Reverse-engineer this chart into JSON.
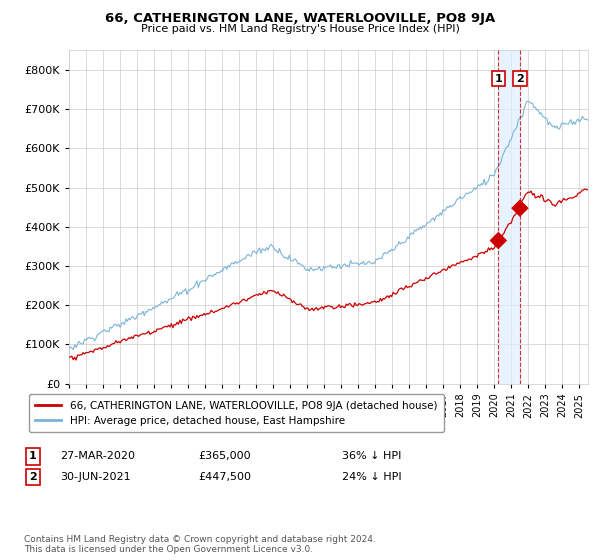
{
  "title": "66, CATHERINGTON LANE, WATERLOOVILLE, PO8 9JA",
  "subtitle": "Price paid vs. HM Land Registry's House Price Index (HPI)",
  "legend_line1": "66, CATHERINGTON LANE, WATERLOOVILLE, PO8 9JA (detached house)",
  "legend_line2": "HPI: Average price, detached house, East Hampshire",
  "annotation1_date": "27-MAR-2020",
  "annotation1_price": "£365,000",
  "annotation1_hpi": "36% ↓ HPI",
  "annotation2_date": "30-JUN-2021",
  "annotation2_price": "£447,500",
  "annotation2_hpi": "24% ↓ HPI",
  "footer": "Contains HM Land Registry data © Crown copyright and database right 2024.\nThis data is licensed under the Open Government Licence v3.0.",
  "sale1_x": 2020.23,
  "sale1_y": 365000,
  "sale2_x": 2021.5,
  "sale2_y": 447500,
  "hpi_color": "#7ab4d8",
  "price_color": "#cc0000",
  "sale_dot_color": "#cc0000",
  "vline_color": "#cc0000",
  "shade_color": "#ddeeff",
  "ylim": [
    0,
    850000
  ],
  "xlim_start": 1995,
  "xlim_end": 2025.5,
  "background_color": "#ffffff",
  "grid_color": "#cccccc"
}
